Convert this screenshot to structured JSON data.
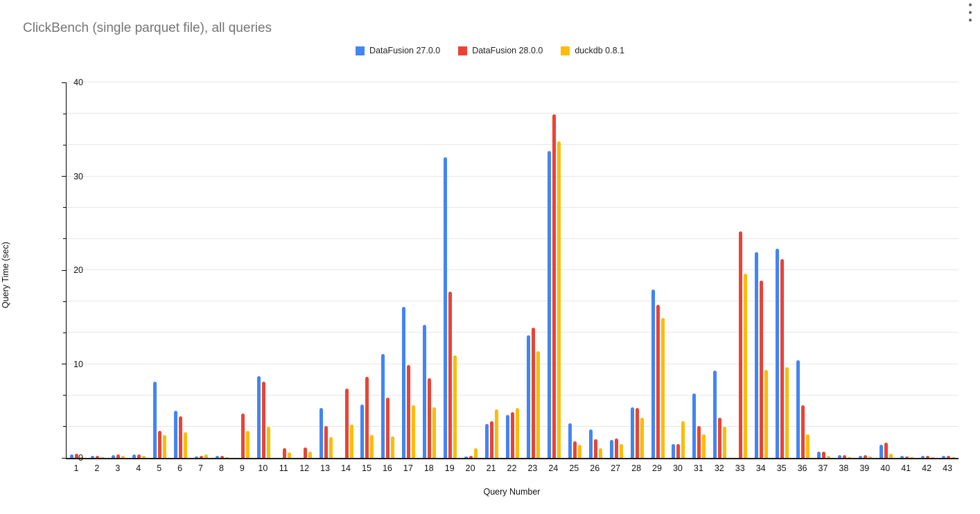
{
  "header": {
    "menu_icon": "kebab-menu"
  },
  "chart_data": {
    "type": "bar",
    "title": "ClickBench (single parquet file), all queries",
    "xlabel": "Query Number",
    "ylabel": "Query Time (sec)",
    "ylim": [
      0,
      40
    ],
    "y_major_ticks": [
      0,
      10,
      20,
      30,
      40
    ],
    "y_minor_step": 3.3333,
    "grid": true,
    "legend_position": "top-center",
    "categories": [
      "1",
      "2",
      "3",
      "4",
      "5",
      "6",
      "7",
      "8",
      "9",
      "10",
      "11",
      "12",
      "13",
      "14",
      "15",
      "16",
      "17",
      "18",
      "19",
      "20",
      "21",
      "22",
      "23",
      "24",
      "25",
      "26",
      "27",
      "28",
      "29",
      "30",
      "31",
      "32",
      "33",
      "34",
      "35",
      "36",
      "37",
      "38",
      "39",
      "40",
      "41",
      "42",
      "43"
    ],
    "series": [
      {
        "name": "DataFusion 27.0.0",
        "color": "#4285F4",
        "values": [
          0.35,
          0.25,
          0.3,
          0.37,
          8.1,
          5.0,
          0.15,
          0.25,
          0,
          8.7,
          0,
          0,
          5.3,
          0,
          5.7,
          11.1,
          16.1,
          14.2,
          32.0,
          0.15,
          3.6,
          4.6,
          13.1,
          32.7,
          3.7,
          3.0,
          1.9,
          5.4,
          17.9,
          1.5,
          6.9,
          9.3,
          0,
          21.9,
          22.3,
          10.4,
          0.7,
          0.3,
          0.25,
          1.4,
          0.2,
          0.25,
          0.25
        ]
      },
      {
        "name": "DataFusion 28.0.0",
        "color": "#EA4335",
        "values": [
          0.45,
          0.25,
          0.35,
          0.35,
          2.9,
          4.4,
          0.2,
          0.25,
          4.7,
          8.1,
          1.0,
          1.1,
          3.4,
          7.4,
          8.6,
          6.4,
          9.9,
          8.5,
          17.7,
          0.2,
          3.9,
          4.9,
          13.9,
          36.6,
          1.8,
          2.0,
          2.1,
          5.3,
          16.3,
          1.5,
          3.4,
          4.3,
          24.1,
          18.9,
          21.2,
          5.6,
          0.65,
          0.3,
          0.3,
          1.6,
          0.15,
          0.25,
          0.2
        ]
      },
      {
        "name": "duckdb 0.8.1",
        "color": "#FBBC04",
        "values": [
          0.08,
          0.1,
          0.2,
          0.25,
          2.4,
          2.75,
          0.37,
          0.1,
          2.9,
          3.3,
          0.6,
          0.65,
          2.25,
          3.55,
          2.4,
          2.3,
          5.6,
          5.4,
          10.9,
          1.0,
          5.2,
          5.3,
          11.4,
          33.7,
          1.4,
          1.0,
          1.5,
          4.3,
          14.9,
          3.9,
          2.5,
          3.3,
          19.6,
          9.4,
          9.7,
          2.5,
          0.2,
          0.1,
          0.15,
          0.45,
          0.07,
          0.05,
          0.1
        ]
      }
    ]
  }
}
